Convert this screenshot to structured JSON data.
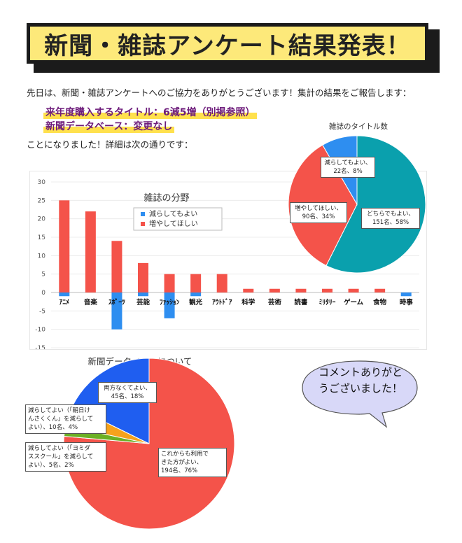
{
  "title": "新聞・雑誌アンケート結果発表！",
  "intro": "先日は、新聞・雑誌アンケートへのご協力をありがとうございます！集計の結果をご報告します：",
  "highlights": [
    "来年度購入するタイトル：6減5増（別掲参照）",
    "新聞データベース：変更なし"
  ],
  "after_text": "ことになりました！詳細は次の通りです：",
  "comment": [
    "コメントありがと",
    "うございました！"
  ],
  "colors": {
    "red": "#f4534a",
    "blue": "#2e8ef0",
    "teal": "#0aa0ad",
    "pie_blue": "#1f5ef0",
    "orange": "#f5a21c",
    "green": "#6bb024",
    "bubble": "#d8d8f8"
  },
  "chart_data": [
    {
      "type": "bar",
      "title": "雑誌の分野",
      "categories": [
        "ｱﾆﾒ",
        "音楽",
        "ｽﾎﾟｰﾂ",
        "芸能",
        "ﾌｧｯｼｮﾝ",
        "観光",
        "ｱｳﾄﾄﾞｱ",
        "科学",
        "芸術",
        "読書",
        "ﾐﾘﾀﾘｰ",
        "ゲーム",
        "食物",
        "時事"
      ],
      "series": [
        {
          "name": "減らしてもよい",
          "values": [
            -1,
            0,
            -10,
            -1,
            -7,
            -1,
            0,
            0,
            0,
            0,
            0,
            0,
            0,
            -1
          ]
        },
        {
          "name": "増やしてほしい",
          "values": [
            25,
            22,
            14,
            8,
            5,
            5,
            5,
            1,
            1,
            1,
            1,
            1,
            1,
            0
          ]
        }
      ],
      "ylim": [
        -15,
        30
      ],
      "yticks": [
        "30",
        "25",
        "20",
        "15",
        "10",
        "5",
        "0",
        "-5",
        "-10",
        "-15"
      ],
      "legend": [
        "減らしてもよい",
        "増やしてほしい"
      ]
    },
    {
      "type": "pie",
      "title": "雑誌のタイトル数",
      "slices": [
        {
          "label": "どちらでもよい、151名、58%",
          "value": 151,
          "percent": 58
        },
        {
          "label": "増やしてほしい、90名、34%",
          "value": 90,
          "percent": 34
        },
        {
          "label": "減らしてもよい、22名、8%",
          "value": 22,
          "percent": 8
        }
      ],
      "label_text": [
        [
          "減らしてもよい、",
          "22名、8%"
        ],
        [
          "増やしてほしい、",
          "90名、34%"
        ],
        [
          "どちらでもよい、",
          "151名、58%"
        ]
      ]
    },
    {
      "type": "pie",
      "title": "新聞データベースについて",
      "slices": [
        {
          "label": "これからも利用できた方がよい、194名、76%",
          "value": 194,
          "percent": 76
        },
        {
          "label": "減らしてよい（「ヨミダススクール」を減らしてよい）、5名、2%",
          "value": 5,
          "percent": 2
        },
        {
          "label": "減らしてよい（「朝日けんさくくん」を減らしてよい）、10名、4%",
          "value": 10,
          "percent": 4
        },
        {
          "label": "両方なくてよい、45名、18%",
          "value": 45,
          "percent": 18
        }
      ],
      "label_text": [
        [
          "両方なくてよい、",
          "45名、18%"
        ],
        [
          "減らしてよい（「朝日け",
          "んさくくん」を減らして",
          "よい）、10名、4%"
        ],
        [
          "減らしてよい（「ヨミダ",
          "ススクール」を減らして",
          "よい）、5名、2%"
        ],
        [
          "これからも利用で",
          "きた方がよい、",
          "194名、76%"
        ]
      ]
    }
  ]
}
